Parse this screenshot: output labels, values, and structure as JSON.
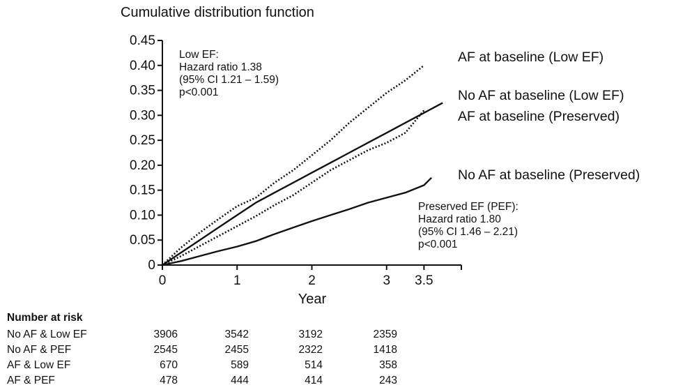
{
  "chart_data": {
    "type": "line",
    "title": "Cumulative distribution function",
    "xlabel": "Year",
    "ylabel": "",
    "xlim": [
      0,
      4
    ],
    "ylim": [
      0,
      0.45
    ],
    "x_ticks": [
      {
        "value": 0,
        "label": "0"
      },
      {
        "value": 1,
        "label": "1"
      },
      {
        "value": 2,
        "label": "2"
      },
      {
        "value": 3,
        "label": "3"
      },
      {
        "value": 3.5,
        "label": "3.5"
      }
    ],
    "y_ticks": [
      {
        "value": 0,
        "label": "0"
      },
      {
        "value": 0.05,
        "label": "0.05"
      },
      {
        "value": 0.1,
        "label": "0.10"
      },
      {
        "value": 0.15,
        "label": "0.15"
      },
      {
        "value": 0.2,
        "label": "0.20"
      },
      {
        "value": 0.25,
        "label": "0.25"
      },
      {
        "value": 0.3,
        "label": "0.30"
      },
      {
        "value": 0.35,
        "label": "0.35"
      },
      {
        "value": 0.4,
        "label": "0.40"
      },
      {
        "value": 0.45,
        "label": "0.45"
      }
    ],
    "grid": false,
    "series": [
      {
        "name": "AF at baseline (Low EF)",
        "style": "dotted",
        "x": [
          0,
          0.25,
          0.5,
          0.75,
          1.0,
          1.25,
          1.5,
          1.75,
          2.0,
          2.25,
          2.5,
          2.75,
          3.0,
          3.25,
          3.5
        ],
        "y": [
          0,
          0.035,
          0.065,
          0.092,
          0.118,
          0.135,
          0.165,
          0.19,
          0.22,
          0.25,
          0.285,
          0.315,
          0.345,
          0.37,
          0.4
        ]
      },
      {
        "name": "No AF at baseline (Low EF)",
        "style": "solid",
        "x": [
          0,
          0.25,
          0.5,
          0.75,
          1.0,
          1.25,
          1.5,
          1.75,
          2.0,
          2.25,
          2.5,
          2.75,
          3.0,
          3.25,
          3.5,
          3.75
        ],
        "y": [
          0,
          0.025,
          0.05,
          0.075,
          0.1,
          0.125,
          0.145,
          0.165,
          0.185,
          0.205,
          0.225,
          0.245,
          0.265,
          0.285,
          0.305,
          0.325
        ]
      },
      {
        "name": "AF at baseline (Preserved)",
        "style": "dotted",
        "x": [
          0,
          0.25,
          0.5,
          0.75,
          1.0,
          1.25,
          1.5,
          1.75,
          2.0,
          2.25,
          2.5,
          2.75,
          3.0,
          3.25,
          3.5
        ],
        "y": [
          0,
          0.018,
          0.038,
          0.058,
          0.078,
          0.098,
          0.12,
          0.14,
          0.165,
          0.19,
          0.21,
          0.23,
          0.245,
          0.265,
          0.31
        ]
      },
      {
        "name": "No AF at baseline (Preserved)",
        "style": "solid",
        "x": [
          0,
          0.25,
          0.5,
          0.75,
          1.0,
          1.25,
          1.5,
          1.75,
          2.0,
          2.25,
          2.5,
          2.75,
          3.0,
          3.25,
          3.5,
          3.6
        ],
        "y": [
          0,
          0.008,
          0.018,
          0.028,
          0.037,
          0.048,
          0.062,
          0.075,
          0.088,
          0.1,
          0.112,
          0.125,
          0.135,
          0.145,
          0.16,
          0.175
        ]
      }
    ],
    "annotations": {
      "low_ef": [
        "Low EF:",
        "Hazard ratio 1.38",
        "(95% CI 1.21 – 1.59)",
        "p<0.001"
      ],
      "pef": [
        "Preserved EF (PEF):",
        "Hazard ratio 1.80",
        "(95% CI 1.46 – 2.21)",
        "p<0.001"
      ]
    }
  },
  "risk_table": {
    "title": "Number at risk",
    "rows": [
      {
        "label": "No AF & Low EF",
        "values": [
          "3906",
          "3542",
          "3192",
          "2359"
        ]
      },
      {
        "label": "No AF & PEF",
        "values": [
          "2545",
          "2455",
          "2322",
          "1418"
        ]
      },
      {
        "label": "AF & Low EF",
        "values": [
          "670",
          "589",
          "514",
          "358"
        ]
      },
      {
        "label": "AF & PEF",
        "values": [
          "478",
          "444",
          "414",
          "243"
        ]
      }
    ]
  }
}
